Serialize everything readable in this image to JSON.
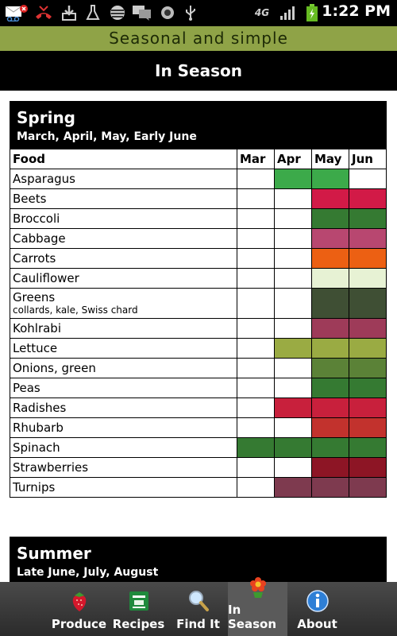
{
  "status_bar": {
    "time": "1:22 PM",
    "network": "4G",
    "icons": [
      "voicemail-icon",
      "missed-call-icon",
      "download-icon",
      "flask-icon",
      "att-icon",
      "chat-icon",
      "record-icon",
      "usb-icon",
      "network-4g-icon",
      "signal-icon",
      "battery-charging-icon"
    ]
  },
  "app_title": "Seasonal and simple",
  "header": {
    "title": "In Season"
  },
  "colors": {
    "app_title_bg": "#8fa347",
    "asparagus": "#3caa4a",
    "beets": "#d21a47",
    "broccoli": "#357a32",
    "cabbage": "#b84770",
    "carrots": "#ec6013",
    "cauliflower": "#e7f2d4",
    "greens": "#3f4f34",
    "kohlrabi": "#9e3b59",
    "lettuce": "#9aab43",
    "onions": "#5b8237",
    "peas": "#357a32",
    "radishes": "#c8203c",
    "rhubarb": "#c2322d",
    "spinach": "#357a32",
    "strawberries": "#8d1525",
    "turnips": "#7e3a4f"
  },
  "seasons": [
    {
      "name": "Spring",
      "months_text": "March, April, May, Early June",
      "table": {
        "headers": [
          "Food",
          "Mar",
          "Apr",
          "May",
          "Jun"
        ],
        "rows": [
          {
            "food": "Asparagus",
            "note": "",
            "color": "#3caa4a",
            "months": [
              0,
              1,
              1,
              0
            ]
          },
          {
            "food": "Beets",
            "note": "",
            "color": "#d21a47",
            "months": [
              0,
              0,
              1,
              1
            ]
          },
          {
            "food": "Broccoli",
            "note": "",
            "color": "#357a32",
            "months": [
              0,
              0,
              1,
              1
            ]
          },
          {
            "food": "Cabbage",
            "note": "",
            "color": "#b84770",
            "months": [
              0,
              0,
              1,
              1
            ]
          },
          {
            "food": "Carrots",
            "note": "",
            "color": "#ec6013",
            "months": [
              0,
              0,
              1,
              1
            ]
          },
          {
            "food": "Cauliflower",
            "note": "",
            "color": "#e7f2d4",
            "months": [
              0,
              0,
              1,
              1
            ]
          },
          {
            "food": "Greens",
            "note": "collards, kale, Swiss chard",
            "color": "#3f4f34",
            "months": [
              0,
              0,
              1,
              1
            ]
          },
          {
            "food": "Kohlrabi",
            "note": "",
            "color": "#9e3b59",
            "months": [
              0,
              0,
              1,
              1
            ]
          },
          {
            "food": "Lettuce",
            "note": "",
            "color": "#9aab43",
            "months": [
              0,
              1,
              1,
              1
            ]
          },
          {
            "food": "Onions, green",
            "note": "",
            "color": "#5b8237",
            "months": [
              0,
              0,
              1,
              1
            ]
          },
          {
            "food": "Peas",
            "note": "",
            "color": "#357a32",
            "months": [
              0,
              0,
              1,
              1
            ]
          },
          {
            "food": "Radishes",
            "note": "",
            "color": "#c8203c",
            "months": [
              0,
              1,
              1,
              1
            ]
          },
          {
            "food": "Rhubarb",
            "note": "",
            "color": "#c2322d",
            "months": [
              0,
              0,
              1,
              1
            ]
          },
          {
            "food": "Spinach",
            "note": "",
            "color": "#357a32",
            "months": [
              1,
              1,
              1,
              1
            ]
          },
          {
            "food": "Strawberries",
            "note": "",
            "color": "#8d1525",
            "months": [
              0,
              0,
              1,
              1
            ]
          },
          {
            "food": "Turnips",
            "note": "",
            "color": "#7e3a4f",
            "months": [
              0,
              1,
              1,
              1
            ]
          }
        ]
      }
    },
    {
      "name": "Summer",
      "months_text": "Late June, July, August"
    }
  ],
  "bottom_nav": {
    "items": [
      {
        "label": "Produce",
        "icon": "strawberry-icon",
        "active": false
      },
      {
        "label": "Recipes",
        "icon": "recipe-box-icon",
        "active": false
      },
      {
        "label": "Find It",
        "icon": "magnifier-icon",
        "active": false
      },
      {
        "label": "In Season",
        "icon": "flower-icon",
        "active": true
      },
      {
        "label": "About",
        "icon": "info-icon",
        "active": false
      }
    ]
  }
}
